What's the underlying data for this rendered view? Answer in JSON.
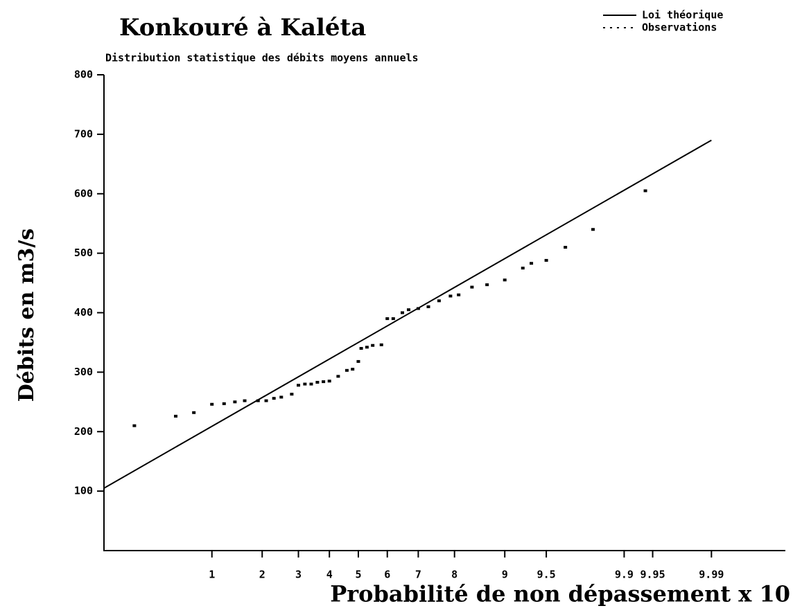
{
  "chart_data": {
    "type": "probability-plot",
    "title": "Konkouré à Kaléta",
    "subtitle": "Distribution statistique des débits moyens annuels",
    "xlabel": "Probabilité de non dépassement x 10",
    "ylabel": "Débits en m3/s",
    "xscale": "normal-probability",
    "xlim": [
      0.13,
      9.999
    ],
    "xticks": [
      1,
      2,
      3,
      4,
      5,
      6,
      7,
      8,
      9,
      9.5,
      9.9,
      9.95,
      9.99
    ],
    "ylim": [
      0,
      800
    ],
    "yticks": [
      100,
      200,
      300,
      400,
      500,
      600,
      700,
      800
    ],
    "legend": "top-right",
    "series": [
      {
        "name": "Loi théorique",
        "style": "line",
        "color": "#000000",
        "x": [
          0.13,
          9.99
        ],
        "values": [
          105,
          690
        ]
      },
      {
        "name": "Observations",
        "style": "dots",
        "color": "#000000",
        "x": [
          0.25,
          0.55,
          0.75,
          1.0,
          1.2,
          1.4,
          1.6,
          1.9,
          2.1,
          2.3,
          2.5,
          2.8,
          3.0,
          3.2,
          3.4,
          3.6,
          3.8,
          4.0,
          4.3,
          4.6,
          4.8,
          5.0,
          5.1,
          5.3,
          5.5,
          5.8,
          6.0,
          6.2,
          6.5,
          6.7,
          7.0,
          7.3,
          7.6,
          7.9,
          8.1,
          8.4,
          8.7,
          9.0,
          9.25,
          9.35,
          9.5,
          9.65,
          9.8,
          9.94
        ],
        "values": [
          210,
          226,
          232,
          246,
          247,
          250,
          252,
          252,
          252,
          256,
          258,
          263,
          278,
          280,
          280,
          283,
          284,
          285,
          293,
          303,
          305,
          318,
          340,
          342,
          345,
          346,
          390,
          390,
          400,
          405,
          407,
          410,
          420,
          428,
          430,
          443,
          447,
          455,
          475,
          483,
          488,
          510,
          540,
          605
        ]
      }
    ]
  }
}
